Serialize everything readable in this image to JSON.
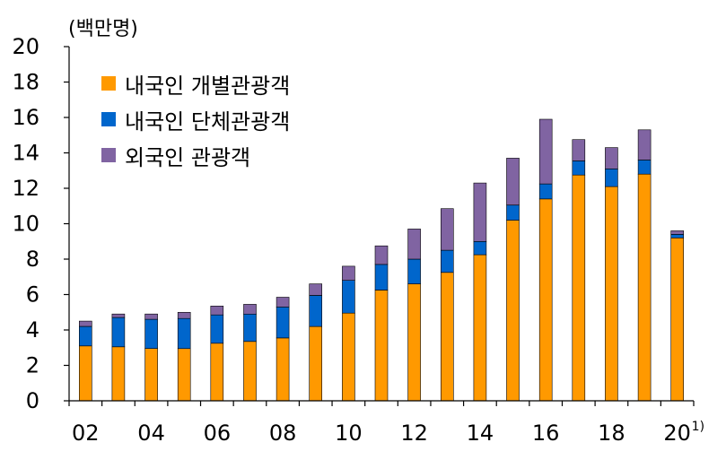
{
  "chart_data": {
    "type": "bar",
    "stacked": true,
    "unit_label": "(백만명)",
    "title": "",
    "xlabel": "",
    "ylabel": "",
    "ylim": [
      0,
      20
    ],
    "yticks": [
      0,
      2,
      4,
      6,
      8,
      10,
      12,
      14,
      16,
      18,
      20
    ],
    "categories": [
      "2002",
      "2003",
      "2004",
      "2005",
      "2006",
      "2007",
      "2008",
      "2009",
      "2010",
      "2011",
      "2012",
      "2013",
      "2014",
      "2015",
      "2016",
      "2017",
      "2018",
      "2019",
      "2020"
    ],
    "xtick_labels": [
      {
        "category": "2002",
        "label": "02"
      },
      {
        "category": "2004",
        "label": "04"
      },
      {
        "category": "2006",
        "label": "06"
      },
      {
        "category": "2008",
        "label": "08"
      },
      {
        "category": "2010",
        "label": "10"
      },
      {
        "category": "2012",
        "label": "12"
      },
      {
        "category": "2014",
        "label": "14"
      },
      {
        "category": "2016",
        "label": "16"
      },
      {
        "category": "2018",
        "label": "18"
      },
      {
        "category": "2020",
        "label": "20",
        "note": "1)"
      }
    ],
    "series": [
      {
        "name": "내국인 개별관광객",
        "color": "#FF9900",
        "values": [
          3.1,
          3.05,
          2.95,
          2.95,
          3.25,
          3.35,
          3.55,
          4.2,
          4.95,
          6.25,
          6.6,
          7.25,
          8.25,
          10.2,
          11.4,
          12.75,
          12.1,
          12.8,
          9.2
        ]
      },
      {
        "name": "내국인 단체관광객",
        "color": "#0066CC",
        "values": [
          1.1,
          1.65,
          1.65,
          1.7,
          1.6,
          1.55,
          1.75,
          1.75,
          1.85,
          1.45,
          1.4,
          1.25,
          0.75,
          0.85,
          0.85,
          0.8,
          1.0,
          0.8,
          0.2
        ]
      },
      {
        "name": "외국인 관광객",
        "color": "#8064A2",
        "values": [
          0.3,
          0.2,
          0.3,
          0.35,
          0.5,
          0.55,
          0.55,
          0.65,
          0.8,
          1.05,
          1.7,
          2.35,
          3.3,
          2.65,
          3.65,
          1.2,
          1.2,
          1.7,
          0.2
        ]
      }
    ],
    "legend": {
      "position": "top-left"
    },
    "grid": false
  }
}
